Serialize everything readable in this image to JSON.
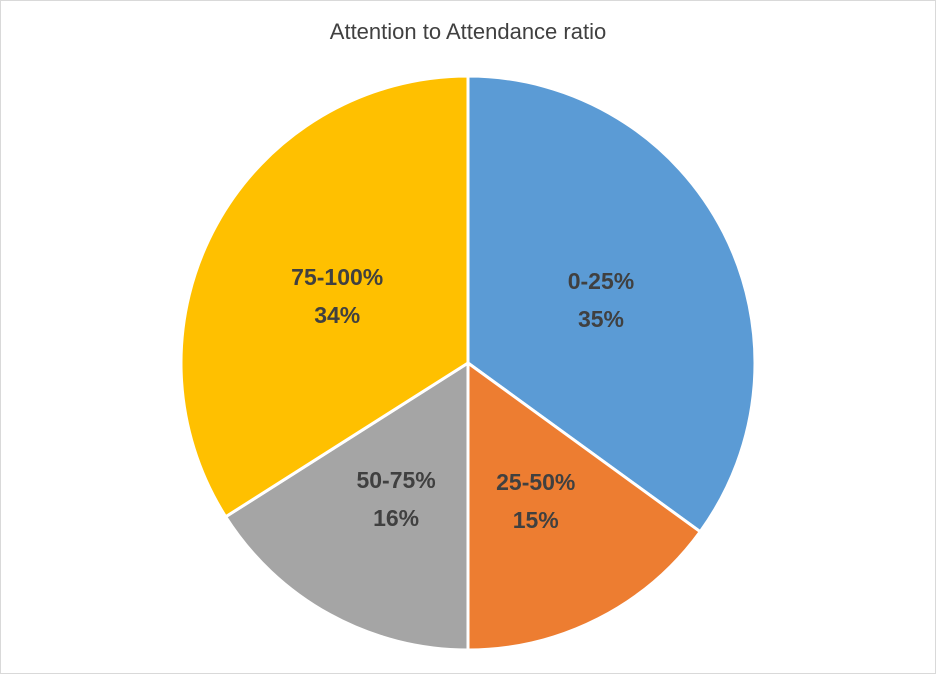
{
  "chart_data": {
    "type": "pie",
    "title": "Attention to Attendance ratio",
    "slices": [
      {
        "label": "0-25%",
        "percent_label": "35%",
        "value": 35,
        "color": "#5B9BD5"
      },
      {
        "label": "25-50%",
        "percent_label": "15%",
        "value": 15,
        "color": "#ED7D31"
      },
      {
        "label": "50-75%",
        "percent_label": "16%",
        "value": 16,
        "color": "#A5A5A5"
      },
      {
        "label": "75-100%",
        "percent_label": "34%",
        "value": 34,
        "color": "#FFC000"
      }
    ],
    "start_angle": "12 o'clock",
    "direction": "clockwise",
    "legend": "none",
    "data_labels": "inside"
  }
}
